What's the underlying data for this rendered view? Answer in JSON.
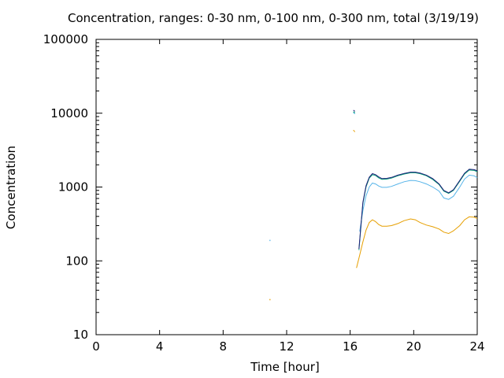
{
  "chart_data": {
    "type": "line",
    "title": "Concentration, ranges: 0-30 nm, 0-100 nm, 0-300 nm, total (3/19/19)",
    "xlabel": "Time [hour]",
    "ylabel": "Concentration",
    "xlim": [
      0,
      24
    ],
    "ylim": [
      10,
      100000
    ],
    "yscale": "log",
    "grid": false,
    "xticks": [
      "0",
      "4",
      "8",
      "12",
      "16",
      "20",
      "24"
    ],
    "yticks": [
      "10",
      "100",
      "1000",
      "10000",
      "100000"
    ],
    "series": [
      {
        "color": "#e69f00",
        "points": [
          [
            10.95,
            30
          ],
          [
            16.2,
            5900
          ],
          [
            16.3,
            5600
          ],
          [
            16.4,
            80
          ],
          [
            16.6,
            120
          ],
          [
            16.8,
            180
          ],
          [
            17.0,
            260
          ],
          [
            17.2,
            330
          ],
          [
            17.4,
            360
          ],
          [
            17.6,
            340
          ],
          [
            17.8,
            310
          ],
          [
            18.0,
            295
          ],
          [
            18.3,
            295
          ],
          [
            18.6,
            300
          ],
          [
            19.0,
            320
          ],
          [
            19.4,
            350
          ],
          [
            19.8,
            370
          ],
          [
            20.1,
            360
          ],
          [
            20.4,
            330
          ],
          [
            20.8,
            305
          ],
          [
            21.2,
            290
          ],
          [
            21.6,
            270
          ],
          [
            21.9,
            245
          ],
          [
            22.2,
            235
          ],
          [
            22.5,
            255
          ],
          [
            22.9,
            300
          ],
          [
            23.2,
            360
          ],
          [
            23.5,
            395
          ],
          [
            23.8,
            390
          ],
          [
            24.0,
            375
          ]
        ]
      },
      {
        "color": "#56b4e9",
        "points": [
          [
            10.95,
            190
          ],
          [
            16.2,
            10200
          ],
          [
            16.3,
            9800
          ],
          [
            16.6,
            250
          ],
          [
            16.8,
            480
          ],
          [
            17.0,
            760
          ],
          [
            17.2,
            1000
          ],
          [
            17.4,
            1130
          ],
          [
            17.6,
            1100
          ],
          [
            17.8,
            1030
          ],
          [
            18.0,
            990
          ],
          [
            18.3,
            990
          ],
          [
            18.6,
            1020
          ],
          [
            19.0,
            1100
          ],
          [
            19.4,
            1180
          ],
          [
            19.8,
            1230
          ],
          [
            20.1,
            1220
          ],
          [
            20.4,
            1180
          ],
          [
            20.8,
            1100
          ],
          [
            21.2,
            1000
          ],
          [
            21.6,
            880
          ],
          [
            21.9,
            710
          ],
          [
            22.2,
            680
          ],
          [
            22.5,
            750
          ],
          [
            22.9,
            1000
          ],
          [
            23.2,
            1280
          ],
          [
            23.5,
            1450
          ],
          [
            23.8,
            1420
          ],
          [
            24.0,
            1340
          ]
        ]
      },
      {
        "color": "#009e73",
        "points": [
          [
            16.2,
            10500
          ],
          [
            16.3,
            10100
          ],
          [
            16.55,
            140
          ],
          [
            16.8,
            600
          ],
          [
            17.0,
            1000
          ],
          [
            17.2,
            1320
          ],
          [
            17.4,
            1470
          ],
          [
            17.6,
            1430
          ],
          [
            17.8,
            1330
          ],
          [
            18.0,
            1270
          ],
          [
            18.3,
            1280
          ],
          [
            18.6,
            1320
          ],
          [
            19.0,
            1420
          ],
          [
            19.4,
            1500
          ],
          [
            19.8,
            1560
          ],
          [
            20.1,
            1560
          ],
          [
            20.4,
            1520
          ],
          [
            20.8,
            1420
          ],
          [
            21.2,
            1270
          ],
          [
            21.6,
            1080
          ],
          [
            21.9,
            880
          ],
          [
            22.2,
            820
          ],
          [
            22.5,
            900
          ],
          [
            22.9,
            1200
          ],
          [
            23.2,
            1500
          ],
          [
            23.5,
            1700
          ],
          [
            23.8,
            1680
          ],
          [
            24.0,
            1620
          ]
        ]
      },
      {
        "color": "#1f1f7a",
        "points": [
          [
            16.2,
            11000
          ],
          [
            16.3,
            10600
          ],
          [
            16.55,
            145
          ],
          [
            16.8,
            620
          ],
          [
            17.0,
            1040
          ],
          [
            17.2,
            1360
          ],
          [
            17.4,
            1520
          ],
          [
            17.6,
            1470
          ],
          [
            17.8,
            1370
          ],
          [
            18.0,
            1300
          ],
          [
            18.3,
            1310
          ],
          [
            18.6,
            1350
          ],
          [
            19.0,
            1450
          ],
          [
            19.4,
            1530
          ],
          [
            19.8,
            1590
          ],
          [
            20.1,
            1590
          ],
          [
            20.4,
            1550
          ],
          [
            20.8,
            1450
          ],
          [
            21.2,
            1300
          ],
          [
            21.6,
            1100
          ],
          [
            21.9,
            900
          ],
          [
            22.2,
            835
          ],
          [
            22.5,
            920
          ],
          [
            22.9,
            1230
          ],
          [
            23.2,
            1540
          ],
          [
            23.5,
            1740
          ],
          [
            23.8,
            1720
          ],
          [
            24.0,
            1660
          ]
        ]
      }
    ]
  }
}
